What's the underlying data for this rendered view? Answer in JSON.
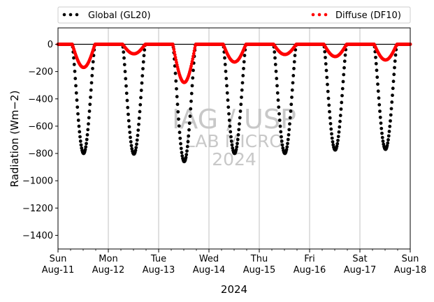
{
  "chart_data": {
    "type": "scatter",
    "title": "",
    "ylabel": "Radiation (Wm−2)",
    "xlabel": "2024",
    "ylim": [
      -1500,
      120
    ],
    "yticks": [
      0,
      -200,
      -400,
      -600,
      -800,
      -1000,
      -1200,
      -1400
    ],
    "xlim": [
      "2024-08-11T00:00",
      "2024-08-18T00:00"
    ],
    "xticks": [
      {
        "day": "Sun",
        "date": "Aug-11"
      },
      {
        "day": "Mon",
        "date": "Aug-12"
      },
      {
        "day": "Tue",
        "date": "Aug-13"
      },
      {
        "day": "Wed",
        "date": "Aug-14"
      },
      {
        "day": "Thu",
        "date": "Aug-15"
      },
      {
        "day": "Fri",
        "date": "Aug-16"
      },
      {
        "day": "Sat",
        "date": "Aug-17"
      },
      {
        "day": "Sun",
        "date": "Aug-18"
      }
    ],
    "grid": "vertical lines at day ticks",
    "reference_line": 0,
    "legend": {
      "placement": "top, above plot"
    },
    "series": [
      {
        "name": "Global (GL20)",
        "color": "#000000",
        "daily_min": [
          -800,
          -805,
          -860,
          -800,
          -800,
          -775,
          -770
        ],
        "sunrise_hour": 6.8,
        "sunset_hour": 17.6
      },
      {
        "name": "Diffuse (DF10)",
        "color": "#ff0000",
        "daily_min": [
          -170,
          -70,
          -280,
          -130,
          -75,
          -90,
          -115
        ],
        "sunrise_hour": 6.8,
        "sunset_hour": 17.6
      }
    ],
    "watermark": [
      "IAG / USP",
      "LAB MICRO",
      "2024"
    ]
  }
}
